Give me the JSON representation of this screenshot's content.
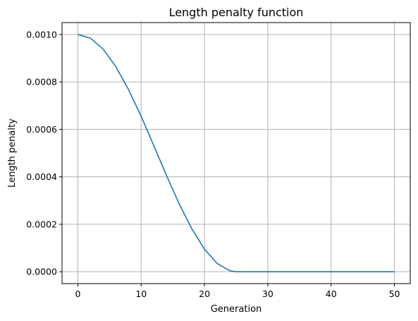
{
  "chart_data": {
    "type": "line",
    "title": "Length penalty function",
    "xlabel": "Generation",
    "ylabel": "Length penalty",
    "xlim": [
      -2.5,
      52.5
    ],
    "ylim": [
      -5e-05,
      0.00105
    ],
    "x_ticks": [
      0,
      10,
      20,
      30,
      40,
      50
    ],
    "x_tick_labels": [
      "0",
      "10",
      "20",
      "30",
      "40",
      "50"
    ],
    "y_ticks": [
      0.0,
      0.0002,
      0.0004,
      0.0006,
      0.0008,
      0.001
    ],
    "y_tick_labels": [
      "0.0000",
      "0.0002",
      "0.0004",
      "0.0006",
      "0.0008",
      "0.0010"
    ],
    "grid": true,
    "series": [
      {
        "color": "#1f77b4",
        "x": [
          0,
          2,
          4,
          6,
          8,
          10,
          12,
          14,
          16,
          18,
          20,
          22,
          24,
          25,
          30,
          35,
          40,
          45,
          50
        ],
        "y": [
          0.001,
          0.000984,
          0.000938,
          0.000864,
          0.000768,
          0.000655,
          0.000531,
          0.000406,
          0.000286,
          0.000181,
          9.5e-05,
          3.5e-05,
          4e-06,
          0.0,
          0.0,
          0.0,
          0.0,
          0.0,
          0.0
        ]
      }
    ]
  }
}
